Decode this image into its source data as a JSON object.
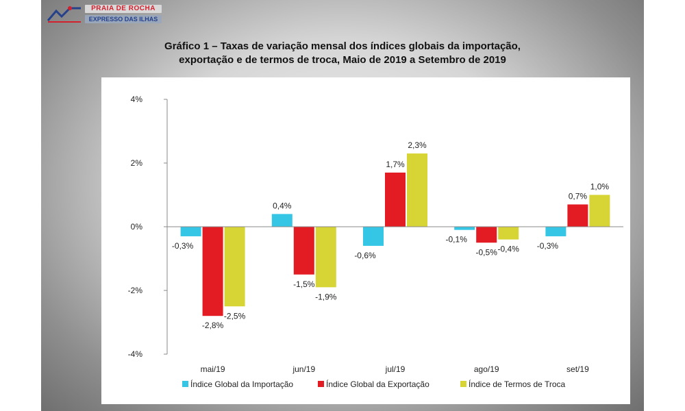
{
  "logo": {
    "top_text": "PRAIA DE ROCHA",
    "bottom_text": "EXPRESSO DAS ILHAS"
  },
  "colors": {
    "importacao": "#35c6e6",
    "exportacao": "#e31b23",
    "termos": "#d7d435",
    "axis": "#888888",
    "background_outer": "#8f8f8f"
  },
  "chart_data": {
    "type": "bar",
    "title_line1": "Gráfico 1 – Taxas de variação mensal dos índices globais da importação,",
    "title_line2": "exportação e de termos de troca, Maio de 2019 a Setembro de 2019",
    "categories": [
      "mai/19",
      "jun/19",
      "jul/19",
      "ago/19",
      "set/19"
    ],
    "series": [
      {
        "name": "Índice Global da Importação",
        "values": [
          -0.3,
          0.4,
          -0.6,
          -0.1,
          -0.3
        ],
        "labels": [
          "-0,3%",
          "0,4%",
          "-0,6%",
          "-0,1%",
          "-0,3%"
        ]
      },
      {
        "name": "Índice Global da Exportação",
        "values": [
          -2.8,
          -1.5,
          1.7,
          -0.5,
          0.7
        ],
        "labels": [
          "-2,8%",
          "-1,5%",
          "1,7%",
          "-0,5%",
          "0,7%"
        ]
      },
      {
        "name": "Índice de Termos de Troca",
        "values": [
          -2.5,
          -1.9,
          2.3,
          -0.4,
          1.0
        ],
        "labels": [
          "-2,5%",
          "-1,9%",
          "2,3%",
          "-0,4%",
          "1,0%"
        ]
      }
    ],
    "ylim": [
      -4,
      4
    ],
    "yticks": [
      4,
      2,
      0,
      -2,
      -4
    ],
    "ytick_labels": [
      "4%",
      "2%",
      "0%",
      "-2%",
      "-4%"
    ],
    "xlabel": "",
    "ylabel": "",
    "grid": false,
    "legend_position": "bottom"
  }
}
